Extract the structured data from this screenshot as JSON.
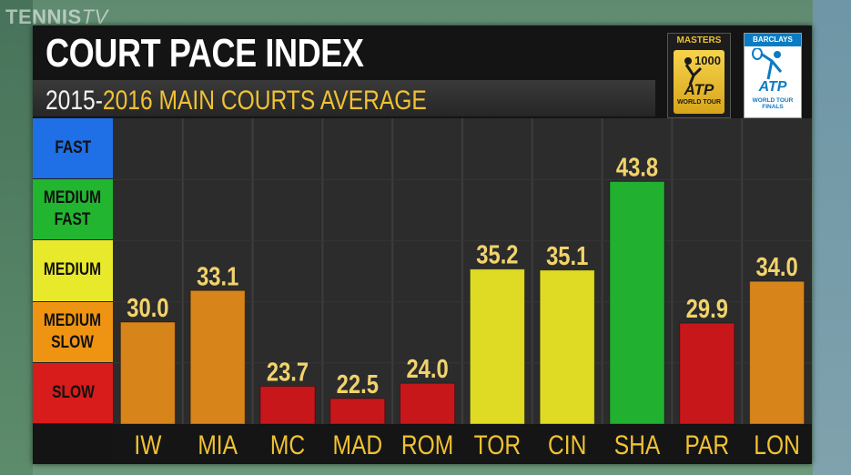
{
  "watermark": {
    "brand": "TENNIS",
    "suffix": "TV"
  },
  "header": {
    "title": "COURT PACE INDEX",
    "subtitle_years": "2015-",
    "subtitle_rest": "2016 MAIN COURTS AVERAGE"
  },
  "logos": {
    "masters": {
      "top": "MASTERS",
      "number": "1000",
      "atp": "ATP",
      "tour": "WORLD TOUR"
    },
    "finals": {
      "sponsor": "BARCLAYS",
      "atp": "ATP",
      "tour": "WORLD TOUR FINALS"
    }
  },
  "legend": [
    {
      "label": "FAST",
      "color": "#1f6fe6"
    },
    {
      "label": "MEDIUM\nFAST",
      "color": "#22b530"
    },
    {
      "label": "MEDIUM",
      "color": "#e9e92c"
    },
    {
      "label": "MEDIUM\nSLOW",
      "color": "#ee9412"
    },
    {
      "label": "SLOW",
      "color": "#d81b1b"
    }
  ],
  "colors": {
    "slow": "#c8171b",
    "medium_slow": "#d7841b",
    "medium": "#dfdb24",
    "medium_fast": "#22b031",
    "value_text": "#f2d36b",
    "category_text": "#f1c232"
  },
  "chart_data": {
    "type": "bar",
    "title": "COURT PACE INDEX",
    "subtitle": "2015-2016 MAIN COURTS AVERAGE",
    "categories": [
      "IW",
      "MIA",
      "MC",
      "MAD",
      "ROM",
      "TOR",
      "CIN",
      "SHA",
      "PAR",
      "LON"
    ],
    "values": [
      30.0,
      33.1,
      23.7,
      22.5,
      24.0,
      35.2,
      35.1,
      43.8,
      29.9,
      34.0
    ],
    "value_labels": [
      "30.0",
      "33.1",
      "23.7",
      "22.5",
      "24.0",
      "35.2",
      "35.1",
      "43.8",
      "29.9",
      "34.0"
    ],
    "bar_colors": [
      "#d7841b",
      "#d7841b",
      "#c8171b",
      "#c8171b",
      "#c8171b",
      "#dfdb24",
      "#dfdb24",
      "#22b031",
      "#c8171b",
      "#d7841b"
    ],
    "ylim": [
      20,
      50
    ],
    "grid": true,
    "legend_position": "left",
    "xlabel": "",
    "ylabel": ""
  }
}
